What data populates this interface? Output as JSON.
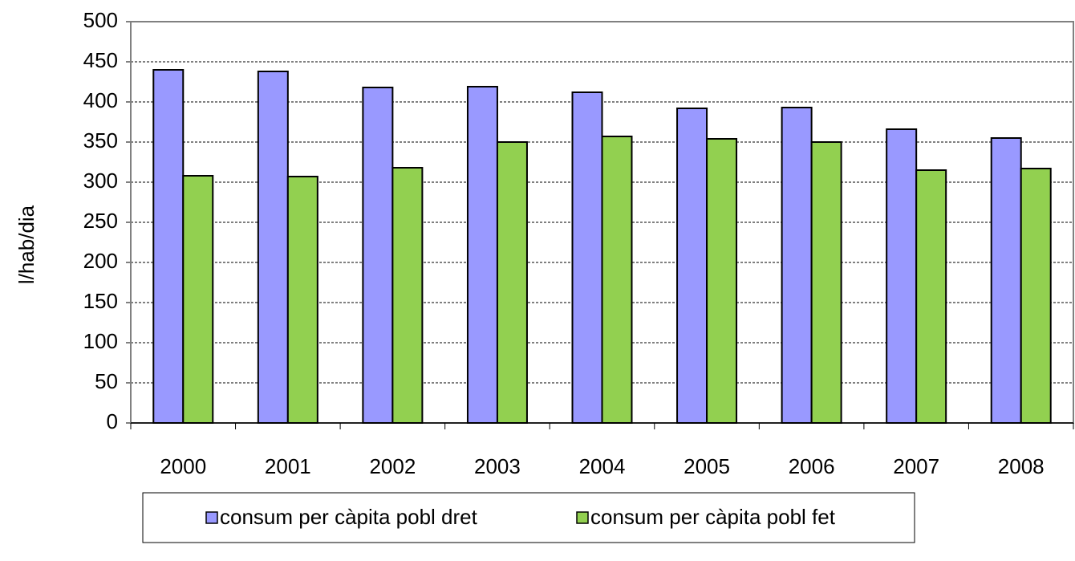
{
  "chart_data": {
    "type": "bar",
    "y_label": "l/hab/dia",
    "categories": [
      "2000",
      "2001",
      "2002",
      "2003",
      "2004",
      "2005",
      "2006",
      "2007",
      "2008"
    ],
    "series": [
      {
        "name": "consum per càpita pobl dret",
        "color": "#9999ff",
        "values": [
          440,
          438,
          418,
          419,
          412,
          392,
          393,
          366,
          355
        ]
      },
      {
        "name": "consum per càpita pobl fet",
        "color": "#92d050",
        "values": [
          308,
          307,
          318,
          350,
          357,
          354,
          350,
          315,
          317
        ]
      }
    ],
    "ylim": [
      0,
      500
    ],
    "yticks": [
      0,
      50,
      100,
      150,
      200,
      250,
      300,
      350,
      400,
      450,
      500
    ],
    "grid": true,
    "legend": "bottom"
  }
}
